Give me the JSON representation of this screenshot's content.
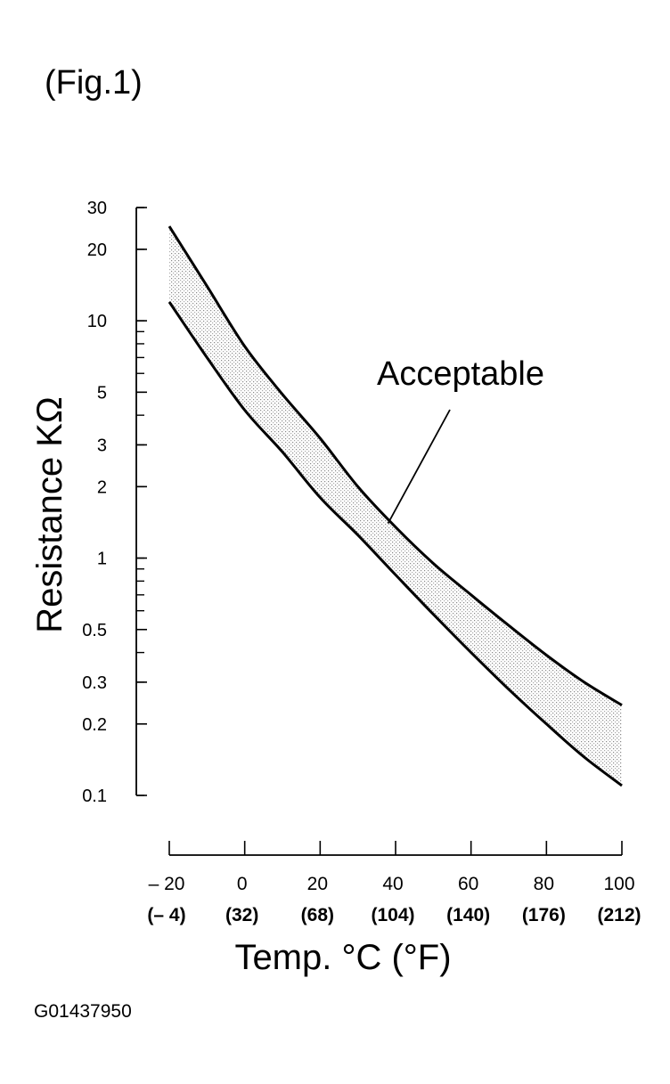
{
  "figure_label": "(Fig.1)",
  "image_code": "G01437950",
  "chart_data": {
    "type": "area",
    "ylabel": "Resistance KΩ",
    "xlabel": "Temp. °C (°F)",
    "yscale": "log",
    "ylim": [
      0.1,
      30
    ],
    "xlim": [
      -20,
      100
    ],
    "yticks": [
      {
        "value": 30,
        "label": "30"
      },
      {
        "value": 20,
        "label": "20"
      },
      {
        "value": 10,
        "label": "10"
      },
      {
        "value": 5,
        "label": "5"
      },
      {
        "value": 3,
        "label": "3"
      },
      {
        "value": 2,
        "label": "2"
      },
      {
        "value": 1,
        "label": "1"
      },
      {
        "value": 0.5,
        "label": "0.5"
      },
      {
        "value": 0.3,
        "label": "0.3"
      },
      {
        "value": 0.2,
        "label": "0.2"
      },
      {
        "value": 0.1,
        "label": "0.1"
      }
    ],
    "xticks": [
      {
        "value": -20,
        "label": "– 20",
        "label_f": "(– 4)"
      },
      {
        "value": 0,
        "label": "0",
        "label_f": "(32)"
      },
      {
        "value": 20,
        "label": "20",
        "label_f": "(68)"
      },
      {
        "value": 40,
        "label": "40",
        "label_f": "(104)"
      },
      {
        "value": 60,
        "label": "60",
        "label_f": "(140)"
      },
      {
        "value": 80,
        "label": "80",
        "label_f": "(176)"
      },
      {
        "value": 100,
        "label": "100",
        "label_f": "(212)"
      }
    ],
    "series": [
      {
        "x": [
          -20,
          -10,
          0,
          10,
          20,
          30,
          40,
          50,
          60,
          70,
          80,
          90,
          100
        ],
        "y": [
          25,
          14,
          7.8,
          4.9,
          3.2,
          2.0,
          1.35,
          0.95,
          0.7,
          0.52,
          0.39,
          0.3,
          0.24
        ]
      },
      {
        "x": [
          -20,
          -10,
          0,
          10,
          20,
          30,
          40,
          50,
          60,
          70,
          80,
          90,
          100
        ],
        "y": [
          12,
          7,
          4.2,
          2.8,
          1.8,
          1.25,
          0.85,
          0.58,
          0.4,
          0.28,
          0.2,
          0.145,
          0.11
        ]
      }
    ],
    "annotations": [
      {
        "text": "Acceptable",
        "points_to": {
          "x": 38,
          "y": 1.4
        }
      }
    ],
    "grid": false,
    "legend": "none"
  }
}
